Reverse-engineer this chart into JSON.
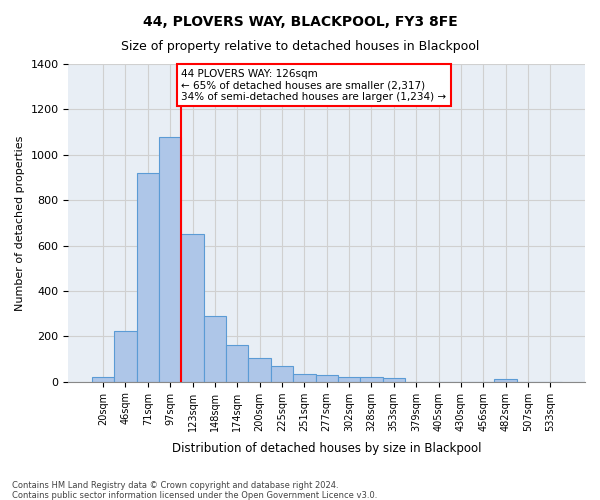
{
  "title": "44, PLOVERS WAY, BLACKPOOL, FY3 8FE",
  "subtitle": "Size of property relative to detached houses in Blackpool",
  "xlabel": "Distribution of detached houses by size in Blackpool",
  "ylabel": "Number of detached properties",
  "categories": [
    "20sqm",
    "46sqm",
    "71sqm",
    "97sqm",
    "123sqm",
    "148sqm",
    "174sqm",
    "200sqm",
    "225sqm",
    "251sqm",
    "277sqm",
    "302sqm",
    "328sqm",
    "353sqm",
    "379sqm",
    "405sqm",
    "430sqm",
    "456sqm",
    "482sqm",
    "507sqm",
    "533sqm"
  ],
  "values": [
    20,
    225,
    920,
    1080,
    650,
    290,
    160,
    105,
    70,
    35,
    28,
    20,
    20,
    15,
    0,
    0,
    0,
    0,
    10,
    0,
    0
  ],
  "bar_color": "#aec6e8",
  "bar_edge_color": "#5b9bd5",
  "grid_color": "#d0d0d0",
  "bg_color": "#e8eef5",
  "vline_x": 3,
  "vline_color": "red",
  "ylim": [
    0,
    1400
  ],
  "yticks": [
    0,
    200,
    400,
    600,
    800,
    1000,
    1200,
    1400
  ],
  "annotation_box_text": "44 PLOVERS WAY: 126sqm\n← 65% of detached houses are smaller (2,317)\n34% of semi-detached houses are larger (1,234) →",
  "footnote1": "Contains HM Land Registry data © Crown copyright and database right 2024.",
  "footnote2": "Contains public sector information licensed under the Open Government Licence v3.0."
}
